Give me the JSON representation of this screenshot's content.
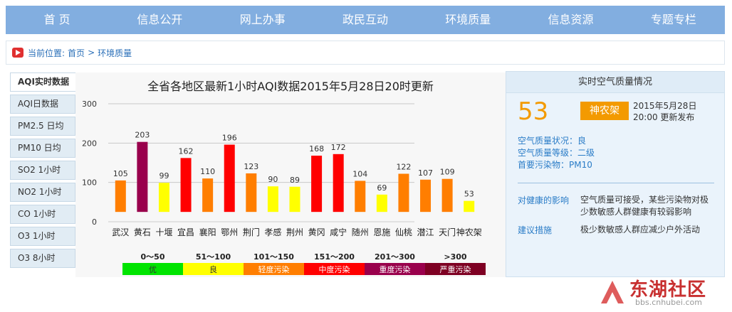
{
  "nav": [
    "首 页",
    "信息公开",
    "网上办事",
    "政民互动",
    "环境质量",
    "信息资源",
    "专题专栏"
  ],
  "breadcrumb": {
    "prefix": "当前位置:",
    "home": "首页",
    "sep": ">",
    "current": "环境质量"
  },
  "sidebar": [
    "AQI实时数据",
    "AQI日数据",
    "PM2.5 日均",
    "PM10 日均",
    "SO2 1小时",
    "NO2 1小时",
    "CO 1小时",
    "O3 1小时",
    "O3 8小时"
  ],
  "chart_data": {
    "type": "bar",
    "title": "全省各地区最新1小时AQI数据2015年5月28日20时更新",
    "categories": [
      "武汉",
      "黄石",
      "十堰",
      "宜昌",
      "襄阳",
      "鄂州",
      "荆门",
      "孝感",
      "荆州",
      "黄冈",
      "咸宁",
      "随州",
      "恩施",
      "仙桃",
      "潜江",
      "天门",
      "神农架"
    ],
    "values": [
      105,
      203,
      99,
      162,
      110,
      196,
      123,
      90,
      89,
      168,
      172,
      104,
      69,
      122,
      107,
      109,
      53
    ],
    "ylim": [
      0,
      300
    ],
    "yticks": [
      0,
      100,
      200,
      300
    ],
    "grid": true,
    "bar_base": 25,
    "colors": [
      "#ff7e00",
      "#99004c",
      "#ffff00",
      "#ff0000",
      "#ff7e00",
      "#ff0000",
      "#ff7e00",
      "#ffff00",
      "#ffff00",
      "#ff0000",
      "#ff0000",
      "#ff7e00",
      "#ffff00",
      "#ff7e00",
      "#ff7e00",
      "#ff7e00",
      "#ffff00"
    ]
  },
  "legend": [
    {
      "range": "0～50",
      "label": "优",
      "color": "#00e400",
      "text_color": "#333333"
    },
    {
      "range": "51～100",
      "label": "良",
      "color": "#ffff00",
      "text_color": "#333333"
    },
    {
      "range": "101～150",
      "label": "轻度污染",
      "color": "#ff7e00",
      "text_color": "#ffffff"
    },
    {
      "range": "151～200",
      "label": "中度污染",
      "color": "#ff0000",
      "text_color": "#ffffff"
    },
    {
      "range": "201～300",
      "label": "重度污染",
      "color": "#99004c",
      "text_color": "#ffffff"
    },
    {
      "range": ">300",
      "label": "严重污染",
      "color": "#7e0023",
      "text_color": "#ffffff"
    }
  ],
  "panel": {
    "title": "实时空气质量情况",
    "aqi": "53",
    "site": "神农架",
    "date": "2015年5月28日",
    "time": "20:00 更新发布",
    "status": "空气质量状况：良",
    "level": "空气质量等级：二级",
    "pollutant": "首要污染物：PM10",
    "health_label": "对健康的影响",
    "health_text": "空气质量可接受，某些污染物对极少数敏感人群健康有较弱影响",
    "advice_label": "建议措施",
    "advice_text": "极少数敏感人群应减少户外活动"
  },
  "watermark": {
    "name": "东湖社区",
    "url": "bbs.cnhubei.com"
  }
}
